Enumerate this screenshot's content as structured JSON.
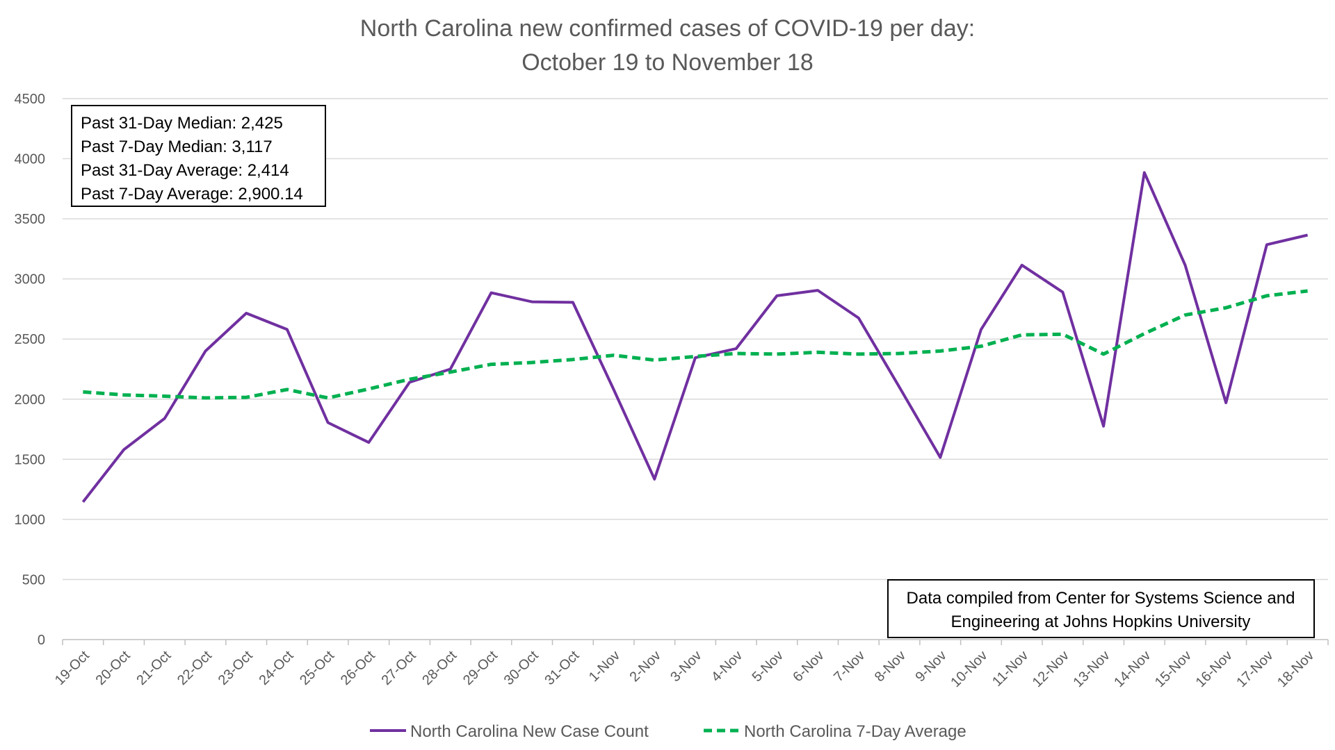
{
  "chart_data": {
    "type": "line",
    "title": "North Carolina new confirmed cases of COVID-19 per day:",
    "subtitle": "October 19 to November 18",
    "categories": [
      "19-Oct",
      "20-Oct",
      "21-Oct",
      "22-Oct",
      "23-Oct",
      "24-Oct",
      "25-Oct",
      "26-Oct",
      "27-Oct",
      "28-Oct",
      "29-Oct",
      "30-Oct",
      "31-Oct",
      "1-Nov",
      "2-Nov",
      "3-Nov",
      "4-Nov",
      "5-Nov",
      "6-Nov",
      "7-Nov",
      "8-Nov",
      "9-Nov",
      "10-Nov",
      "11-Nov",
      "12-Nov",
      "13-Nov",
      "14-Nov",
      "15-Nov",
      "16-Nov",
      "17-Nov",
      "18-Nov"
    ],
    "series": [
      {
        "name": "North Carolina New Case Count",
        "color": "#7030a0",
        "dash": "solid",
        "values": [
          1145,
          1580,
          1840,
          2400,
          2715,
          2580,
          1805,
          1640,
          2140,
          2250,
          2885,
          2810,
          2805,
          2080,
          1335,
          2345,
          2420,
          2860,
          2905,
          2675,
          2100,
          1515,
          2580,
          3115,
          2890,
          1775,
          3885,
          3115,
          1970,
          3285,
          3365
        ]
      },
      {
        "name": "North Carolina 7-Day Average",
        "color": "#00b050",
        "dash": "dashed",
        "values": [
          2060,
          2035,
          2025,
          2010,
          2015,
          2080,
          2010,
          2085,
          2165,
          2225,
          2290,
          2305,
          2330,
          2365,
          2325,
          2355,
          2380,
          2375,
          2390,
          2375,
          2380,
          2400,
          2440,
          2535,
          2540,
          2375,
          2545,
          2700,
          2760,
          2860,
          2900
        ]
      }
    ],
    "yticks": [
      "0",
      "500",
      "1000",
      "1500",
      "2000",
      "2500",
      "3000",
      "3500",
      "4000",
      "4500"
    ],
    "ylim": [
      0,
      4500
    ],
    "grid": true,
    "legend_position": "bottom",
    "annotations": {
      "stats": [
        "Past 31-Day Median: 2,425",
        "Past 7-Day Median: 3,117",
        "Past 31-Day Average: 2,414",
        "Past 7-Day Average: 2,900.14"
      ],
      "source": [
        "Data compiled from Center for Systems Science and",
        "Engineering at Johns Hopkins University"
      ]
    }
  }
}
